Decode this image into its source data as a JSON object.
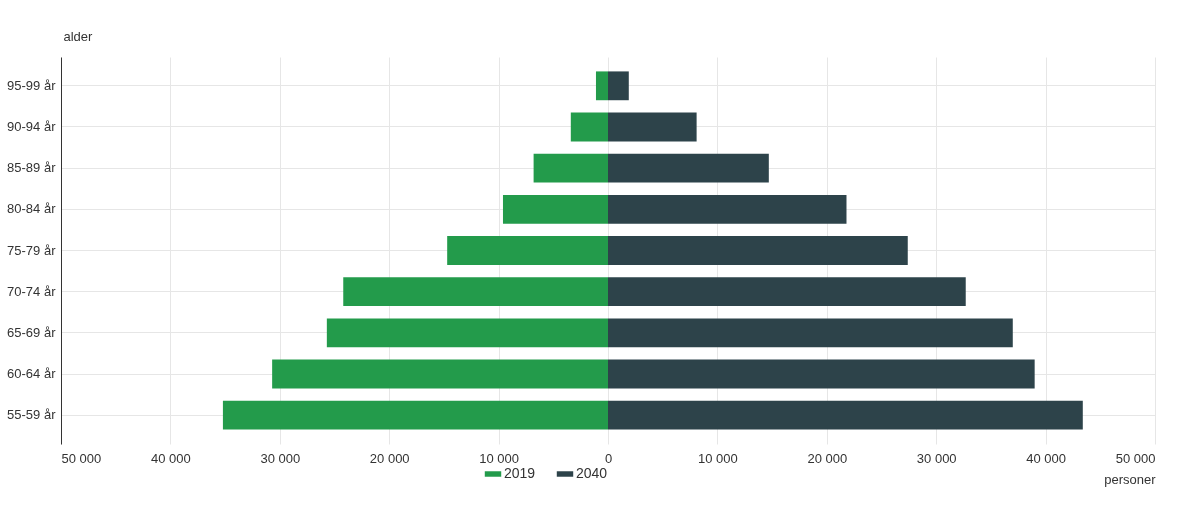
{
  "chart_data": {
    "type": "bar",
    "orientation": "horizontal",
    "xlabel": "personer",
    "ylabel": "alder",
    "categories": [
      "95-99 år",
      "90-94 år",
      "85-89 år",
      "80-84 år",
      "75-79 år",
      "70-74 år",
      "65-69 år",
      "60-64 år",
      "55-59 år"
    ],
    "series": [
      {
        "name": "2019",
        "color": "#239b4b",
        "values": [
          -1100,
          -3400,
          -6800,
          -9600,
          -14700,
          -24200,
          -25700,
          -30700,
          -35200
        ]
      },
      {
        "name": "2040",
        "color": "#2d434a",
        "values": [
          1900,
          8100,
          14700,
          21800,
          27400,
          32700,
          37000,
          39000,
          43400
        ]
      }
    ],
    "xlim": [
      -50000,
      50000
    ],
    "xticks": [
      {
        "value": -50000,
        "label": "50 000"
      },
      {
        "value": -40000,
        "label": "40 000"
      },
      {
        "value": -30000,
        "label": "30 000"
      },
      {
        "value": -20000,
        "label": "20 000"
      },
      {
        "value": -10000,
        "label": "10 000"
      },
      0,
      {
        "value": 10000,
        "label": "10 000"
      },
      {
        "value": 20000,
        "label": "20 000"
      },
      {
        "value": 30000,
        "label": "30 000"
      },
      {
        "value": 40000,
        "label": "40 000"
      },
      {
        "value": 50000,
        "label": "50 000"
      }
    ],
    "grid": true,
    "legend": "bottom",
    "stacked": true
  }
}
